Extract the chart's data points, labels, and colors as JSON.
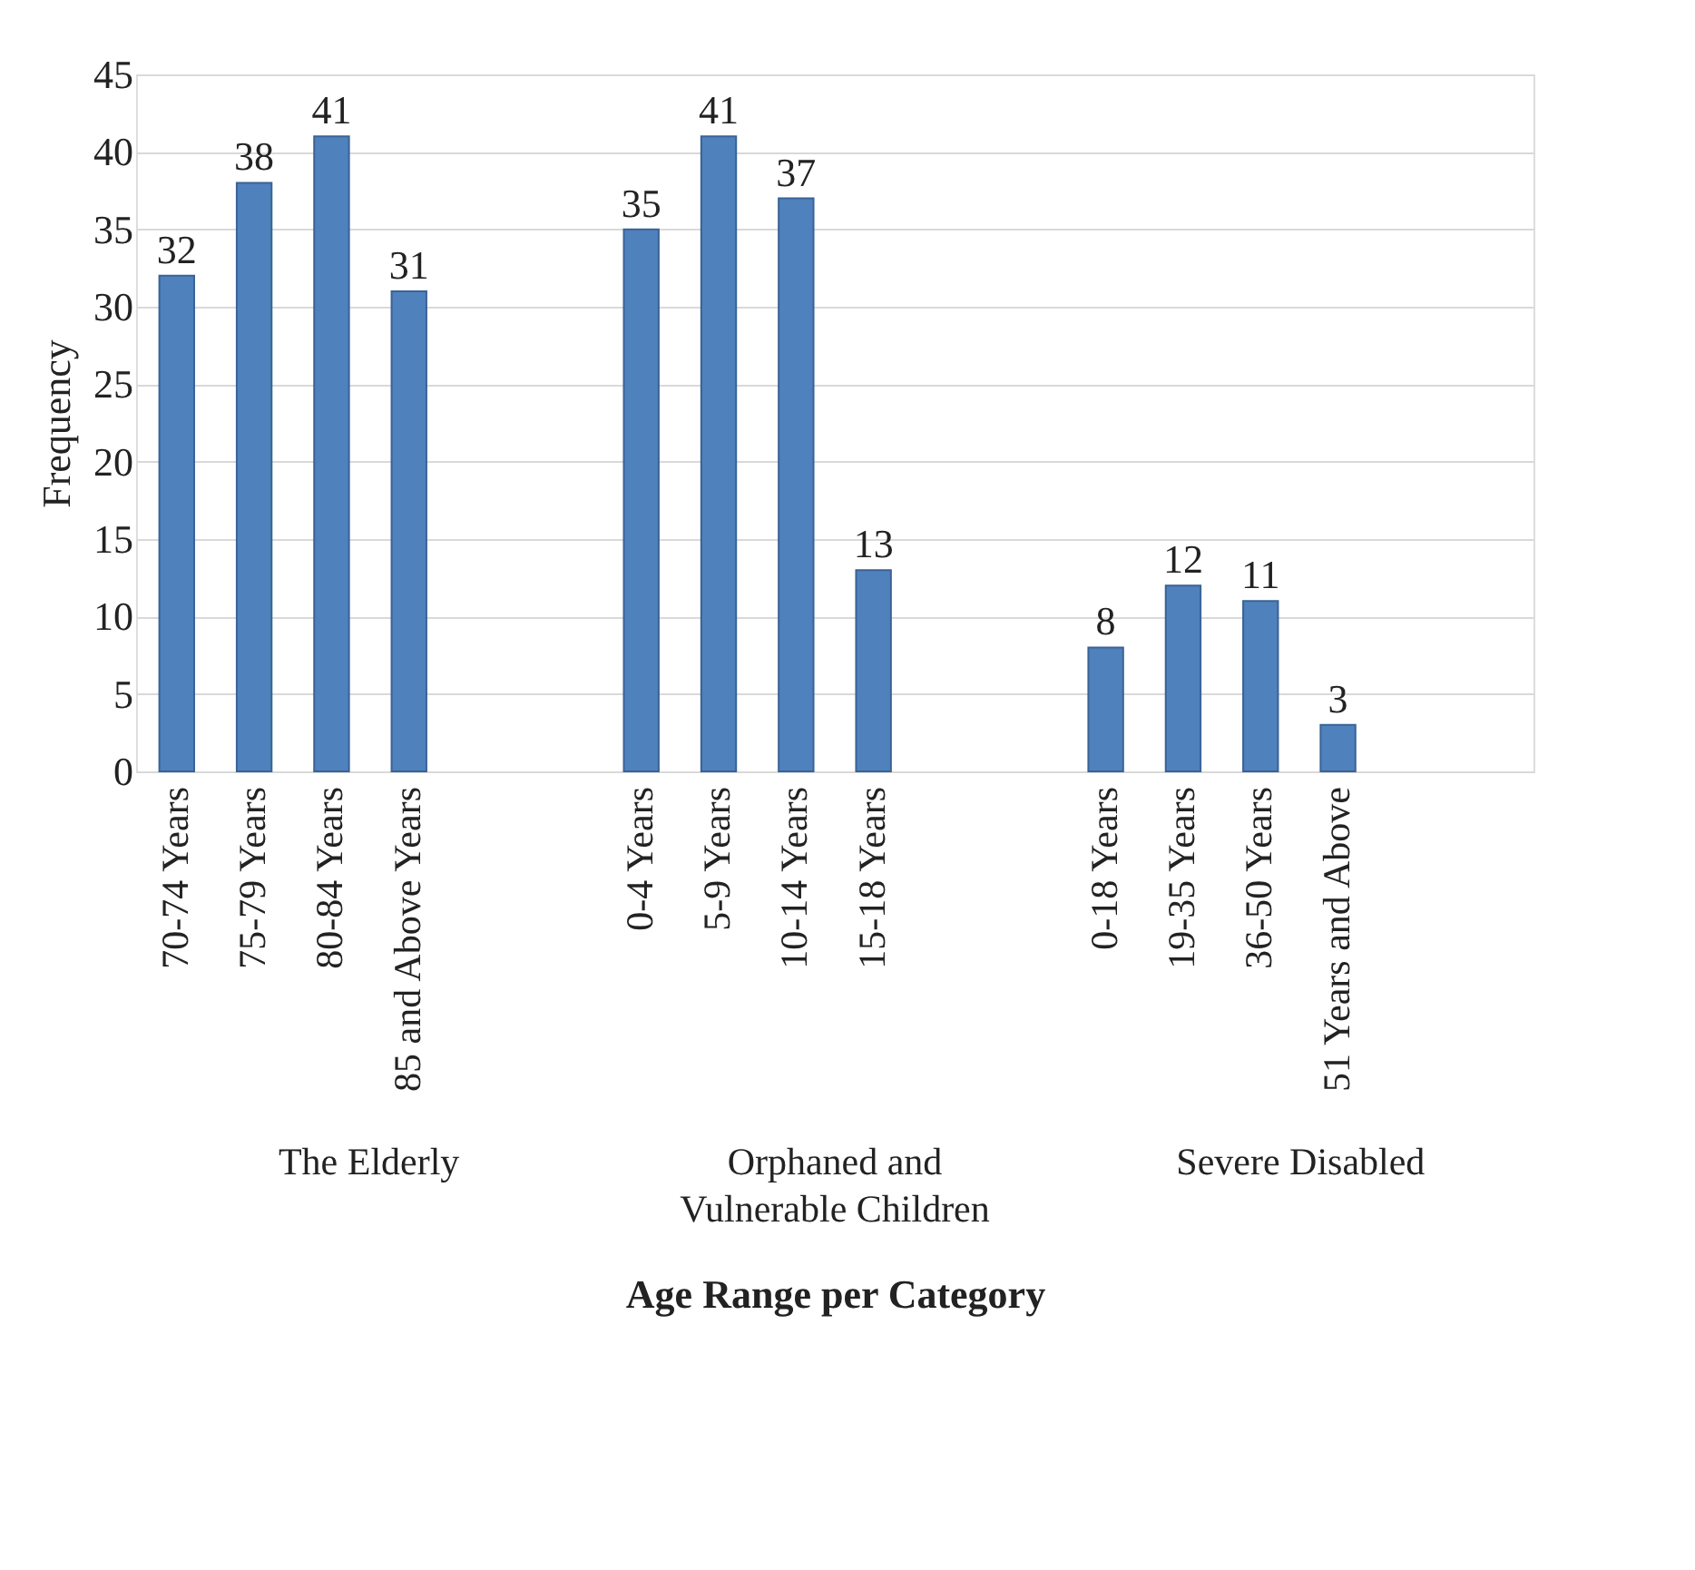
{
  "chart_data": {
    "type": "bar",
    "xlabel": "Age Range per Category",
    "ylabel": "Frequency",
    "categories": [
      "70-74 Years",
      "75-79 Years",
      "80-84 Years",
      "85 and Above Years",
      null,
      null,
      "0-4 Years",
      "5-9 Years",
      "10-14 Years",
      "15-18 Years",
      null,
      null,
      "0-18 Years",
      "19-35 Years",
      "36-50 Years",
      "51 Years and Above",
      null,
      null
    ],
    "values": [
      32,
      38,
      41,
      31,
      null,
      null,
      35,
      41,
      37,
      13,
      null,
      null,
      8,
      12,
      11,
      3,
      null,
      null
    ],
    "color": "#4f81bd",
    "ylim": [
      0,
      45
    ],
    "yticks": [
      0,
      5,
      10,
      15,
      20,
      25,
      30,
      35,
      40,
      45
    ],
    "grid": "y",
    "data_labels": true,
    "annotations": [
      "The Elderly",
      "Orphaned and Vulnerable Children",
      "Severe Disabled"
    ]
  }
}
